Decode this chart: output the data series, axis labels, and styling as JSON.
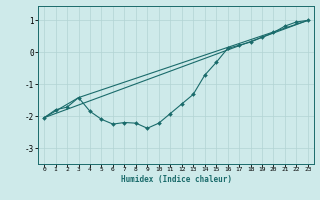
{
  "xlabel": "Humidex (Indice chaleur)",
  "bg_color": "#ceeaea",
  "grid_color": "#b2d4d4",
  "line_color": "#1a6b6b",
  "xlim": [
    -0.5,
    23.5
  ],
  "ylim": [
    -3.5,
    1.45
  ],
  "yticks": [
    -3,
    -2,
    -1,
    0,
    1
  ],
  "xticks": [
    0,
    1,
    2,
    3,
    4,
    5,
    6,
    7,
    8,
    9,
    10,
    11,
    12,
    13,
    14,
    15,
    16,
    17,
    18,
    19,
    20,
    21,
    22,
    23
  ],
  "line1_x": [
    0,
    1,
    2,
    3,
    4,
    5,
    6,
    7,
    8,
    9,
    10,
    11,
    12,
    13,
    14,
    15,
    16,
    17,
    18,
    19,
    20,
    21,
    22,
    23
  ],
  "line1_y": [
    -2.05,
    -1.8,
    -1.72,
    -1.42,
    -1.85,
    -2.1,
    -2.25,
    -2.2,
    -2.22,
    -2.38,
    -2.22,
    -1.92,
    -1.62,
    -1.32,
    -0.72,
    -0.32,
    0.12,
    0.22,
    0.32,
    0.47,
    0.62,
    0.82,
    0.95,
    1.0
  ],
  "line2_x": [
    0,
    23
  ],
  "line2_y": [
    -2.05,
    1.0
  ],
  "line3_x": [
    0,
    3,
    23
  ],
  "line3_y": [
    -2.05,
    -1.42,
    1.0
  ]
}
